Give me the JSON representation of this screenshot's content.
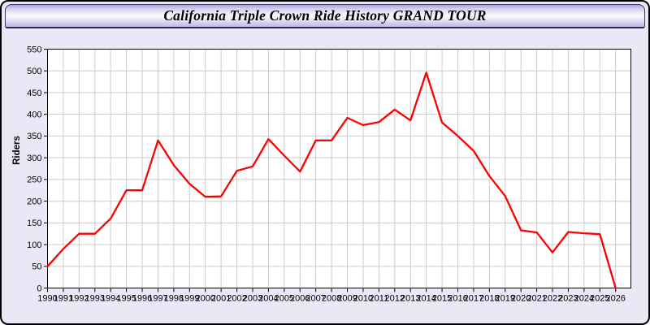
{
  "header": {
    "title": "California Triple Crown Ride History GRAND TOUR"
  },
  "chart_data": {
    "type": "line",
    "title": "California Triple Crown Ride History GRAND TOUR",
    "xlabel": "",
    "ylabel": "Riders",
    "x": [
      1990,
      1991,
      1992,
      1993,
      1994,
      1995,
      1996,
      1997,
      1998,
      1999,
      2000,
      2001,
      2002,
      2003,
      2004,
      2005,
      2006,
      2007,
      2008,
      2009,
      2010,
      2011,
      2012,
      2013,
      2014,
      2015,
      2016,
      2017,
      2018,
      2019,
      2020,
      2021,
      2022,
      2023,
      2024,
      2025,
      2026
    ],
    "series": [
      {
        "name": "Riders",
        "color": "#ff0000",
        "values": [
          50,
          90,
          125,
          125,
          160,
          225,
          225,
          340,
          283,
          240,
          210,
          211,
          270,
          280,
          343,
          305,
          268,
          340,
          340,
          392,
          375,
          382,
          411,
          386,
          496,
          381,
          350,
          316,
          258,
          212,
          133,
          128,
          82,
          129,
          126,
          124,
          0
        ]
      }
    ],
    "ylim": [
      0,
      550
    ],
    "ytick_step": 50,
    "grid": true,
    "legend_position": "none"
  },
  "colors": {
    "page_bg": "#e9e8f7",
    "plot_bg": "#ffffff",
    "grid": "#cccccc",
    "axis": "#000000",
    "line": "#ff0000",
    "text": "#000000"
  }
}
